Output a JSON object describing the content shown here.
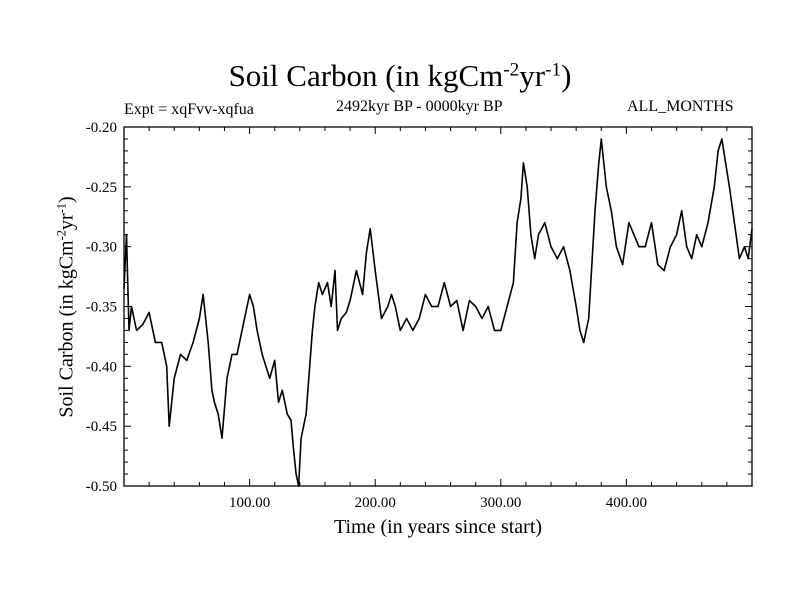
{
  "title": {
    "main": "Soil Carbon (in kgCm",
    "sup1": "-2",
    "mid": "yr",
    "sup2": "-1",
    "close": ")"
  },
  "left_label": "Expt = xqFvv-xqfua",
  "center_label": "2492kyr BP - 0000kyr BP",
  "right_label": "ALL_MONTHS",
  "colors": {
    "line": "#000000",
    "background": "#ffffff"
  },
  "chart_data": {
    "type": "line",
    "title": "Soil Carbon (in kgCm-2yr-1)",
    "xlabel": "Time (in years since start)",
    "ylabel": "Soil Carbon (in kgCm-2yr-1)",
    "ylabel_parts": {
      "main": "Soil Carbon (in kgCm",
      "sup1": "-2",
      "mid": "yr",
      "sup2": "-1",
      "close": ")"
    },
    "xlim": [
      0,
      500
    ],
    "ylim": [
      -0.5,
      -0.2
    ],
    "xticks": [
      100,
      200,
      300,
      400
    ],
    "xtick_labels": [
      "100.00",
      "200.00",
      "300.00",
      "400.00"
    ],
    "yticks": [
      -0.5,
      -0.45,
      -0.4,
      -0.35,
      -0.3,
      -0.25,
      -0.2
    ],
    "ytick_labels": [
      "-0.50",
      "-0.45",
      "-0.40",
      "-0.35",
      "-0.30",
      "-0.25",
      "-0.20"
    ],
    "grid": false,
    "series": [
      {
        "name": "Soil Carbon",
        "x": [
          0,
          2,
          4,
          6,
          8,
          10,
          15,
          20,
          25,
          30,
          34,
          36,
          40,
          45,
          50,
          55,
          60,
          63,
          67,
          70,
          72,
          75,
          78,
          82,
          86,
          90,
          95,
          100,
          103,
          106,
          110,
          113,
          116,
          120,
          123,
          126,
          130,
          133,
          135,
          137,
          139,
          141,
          145,
          150,
          152,
          155,
          158,
          162,
          165,
          168,
          170,
          173,
          177,
          180,
          185,
          190,
          193,
          196,
          200,
          205,
          210,
          213,
          216,
          220,
          225,
          230,
          235,
          240,
          245,
          250,
          255,
          260,
          265,
          270,
          275,
          280,
          285,
          290,
          295,
          300,
          305,
          310,
          313,
          316,
          318,
          321,
          324,
          327,
          330,
          335,
          340,
          345,
          350,
          355,
          360,
          363,
          366,
          370,
          375,
          378,
          380,
          384,
          388,
          392,
          397,
          402,
          406,
          410,
          415,
          420,
          425,
          430,
          435,
          440,
          444,
          448,
          452,
          456,
          460,
          465,
          470,
          473,
          476,
          479,
          482,
          486,
          490,
          494,
          497,
          500
        ],
        "values": [
          -0.335,
          -0.29,
          -0.37,
          -0.35,
          -0.36,
          -0.37,
          -0.365,
          -0.355,
          -0.38,
          -0.38,
          -0.4,
          -0.45,
          -0.41,
          -0.39,
          -0.395,
          -0.38,
          -0.36,
          -0.34,
          -0.38,
          -0.42,
          -0.43,
          -0.44,
          -0.46,
          -0.41,
          -0.39,
          -0.39,
          -0.365,
          -0.34,
          -0.35,
          -0.37,
          -0.39,
          -0.4,
          -0.41,
          -0.395,
          -0.43,
          -0.42,
          -0.44,
          -0.445,
          -0.47,
          -0.49,
          -0.5,
          -0.46,
          -0.44,
          -0.37,
          -0.35,
          -0.33,
          -0.34,
          -0.33,
          -0.35,
          -0.32,
          -0.37,
          -0.36,
          -0.355,
          -0.345,
          -0.32,
          -0.34,
          -0.305,
          -0.285,
          -0.32,
          -0.36,
          -0.35,
          -0.34,
          -0.35,
          -0.37,
          -0.36,
          -0.37,
          -0.36,
          -0.34,
          -0.35,
          -0.35,
          -0.33,
          -0.35,
          -0.345,
          -0.37,
          -0.345,
          -0.35,
          -0.36,
          -0.35,
          -0.37,
          -0.37,
          -0.35,
          -0.33,
          -0.28,
          -0.26,
          -0.23,
          -0.25,
          -0.29,
          -0.31,
          -0.29,
          -0.28,
          -0.3,
          -0.31,
          -0.3,
          -0.32,
          -0.35,
          -0.37,
          -0.38,
          -0.36,
          -0.27,
          -0.23,
          -0.21,
          -0.25,
          -0.27,
          -0.3,
          -0.315,
          -0.28,
          -0.29,
          -0.3,
          -0.3,
          -0.28,
          -0.315,
          -0.32,
          -0.3,
          -0.29,
          -0.27,
          -0.3,
          -0.31,
          -0.29,
          -0.3,
          -0.28,
          -0.25,
          -0.22,
          -0.21,
          -0.23,
          -0.25,
          -0.28,
          -0.31,
          -0.3,
          -0.31,
          -0.285
        ]
      }
    ]
  }
}
